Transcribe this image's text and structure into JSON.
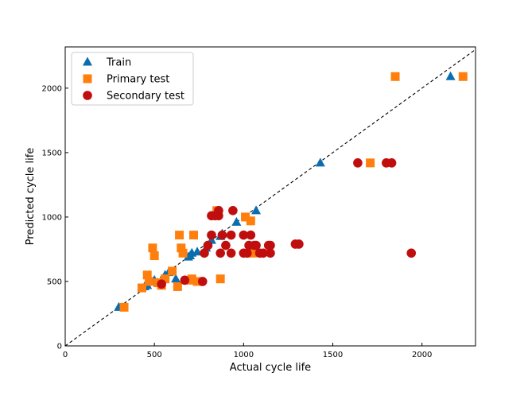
{
  "chart_data": {
    "type": "scatter",
    "title": "",
    "xlabel": "Actual cycle life",
    "ylabel": "Predicted cycle life",
    "xlim": [
      0,
      2300
    ],
    "ylim": [
      0,
      2320
    ],
    "xticks": [
      0,
      500,
      1000,
      1500,
      2000
    ],
    "yticks": [
      0,
      500,
      1000,
      1500,
      2000
    ],
    "grid": false,
    "legend_position": "top-left",
    "reference_line": {
      "style": "dashed",
      "color": "#000000",
      "from": [
        0,
        0
      ],
      "to": [
        2300,
        2300
      ]
    },
    "series": [
      {
        "name": "Train",
        "marker": "triangle",
        "color": "#0a6db0",
        "points": [
          [
            300,
            300
          ],
          [
            445,
            460
          ],
          [
            460,
            470
          ],
          [
            480,
            500
          ],
          [
            500,
            510
          ],
          [
            520,
            490
          ],
          [
            560,
            550
          ],
          [
            580,
            570
          ],
          [
            620,
            520
          ],
          [
            690,
            690
          ],
          [
            700,
            700
          ],
          [
            710,
            720
          ],
          [
            740,
            730
          ],
          [
            790,
            760
          ],
          [
            820,
            820
          ],
          [
            870,
            850
          ],
          [
            880,
            870
          ],
          [
            960,
            960
          ],
          [
            1070,
            1050
          ],
          [
            1430,
            1420
          ],
          [
            2160,
            2090
          ]
        ]
      },
      {
        "name": "Primary test",
        "marker": "square",
        "color": "#ff7f0e",
        "points": [
          [
            330,
            300
          ],
          [
            430,
            450
          ],
          [
            460,
            550
          ],
          [
            470,
            500
          ],
          [
            490,
            760
          ],
          [
            500,
            700
          ],
          [
            520,
            490
          ],
          [
            540,
            470
          ],
          [
            560,
            520
          ],
          [
            600,
            580
          ],
          [
            630,
            460
          ],
          [
            640,
            860
          ],
          [
            650,
            760
          ],
          [
            660,
            720
          ],
          [
            700,
            510
          ],
          [
            710,
            520
          ],
          [
            720,
            860
          ],
          [
            740,
            500
          ],
          [
            850,
            1050
          ],
          [
            870,
            520
          ],
          [
            1010,
            1000
          ],
          [
            1040,
            970
          ],
          [
            1050,
            720
          ],
          [
            1060,
            740
          ],
          [
            1710,
            1420
          ],
          [
            1850,
            2090
          ],
          [
            2230,
            2090
          ]
        ]
      },
      {
        "name": "Secondary test",
        "marker": "circle",
        "color": "#c00e0e",
        "points": [
          [
            540,
            480
          ],
          [
            670,
            510
          ],
          [
            770,
            500
          ],
          [
            780,
            720
          ],
          [
            800,
            780
          ],
          [
            820,
            860
          ],
          [
            820,
            1010
          ],
          [
            840,
            1010
          ],
          [
            860,
            1050
          ],
          [
            860,
            1010
          ],
          [
            870,
            720
          ],
          [
            880,
            860
          ],
          [
            900,
            780
          ],
          [
            930,
            860
          ],
          [
            930,
            720
          ],
          [
            940,
            1050
          ],
          [
            1000,
            720
          ],
          [
            1000,
            860
          ],
          [
            1020,
            720
          ],
          [
            1030,
            780
          ],
          [
            1040,
            860
          ],
          [
            1060,
            780
          ],
          [
            1070,
            780
          ],
          [
            1090,
            720
          ],
          [
            1110,
            720
          ],
          [
            1140,
            780
          ],
          [
            1150,
            720
          ],
          [
            1150,
            780
          ],
          [
            1290,
            790
          ],
          [
            1310,
            790
          ],
          [
            1640,
            1420
          ],
          [
            1800,
            1420
          ],
          [
            1830,
            1420
          ],
          [
            1940,
            720
          ]
        ]
      }
    ]
  }
}
